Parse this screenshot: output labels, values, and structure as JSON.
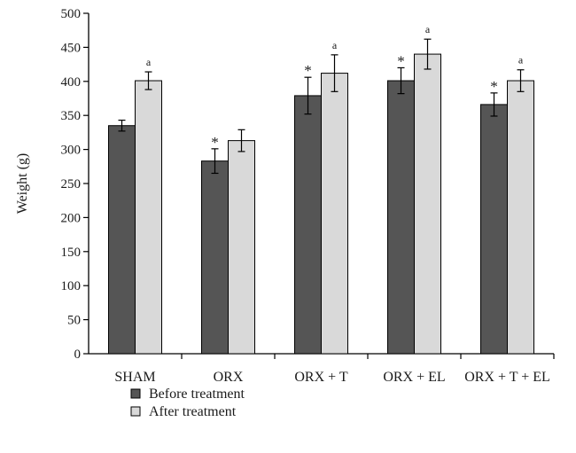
{
  "chart_data": {
    "type": "bar",
    "title": "",
    "xlabel": "",
    "ylabel": "Weight (g)",
    "ylim": [
      0,
      500
    ],
    "yticks": [
      0,
      50,
      100,
      150,
      200,
      250,
      300,
      350,
      400,
      450,
      500
    ],
    "categories": [
      "SHAM",
      "ORX",
      "ORX + T",
      "ORX + EL",
      "ORX + T + EL"
    ],
    "series": [
      {
        "name": "Before treatment",
        "color": "#555555",
        "values": [
          335,
          283,
          379,
          401,
          366
        ],
        "errors": [
          8,
          18,
          27,
          19,
          17
        ],
        "markers": [
          "",
          "*",
          "*",
          "*",
          "*"
        ]
      },
      {
        "name": "After treatment",
        "color": "#d9d9d9",
        "values": [
          401,
          313,
          412,
          440,
          401
        ],
        "errors": [
          13,
          16,
          27,
          22,
          16
        ],
        "markers": [
          "a",
          "",
          "a",
          "a",
          "a"
        ]
      }
    ],
    "legend_position": "bottom-left",
    "grid": false
  }
}
